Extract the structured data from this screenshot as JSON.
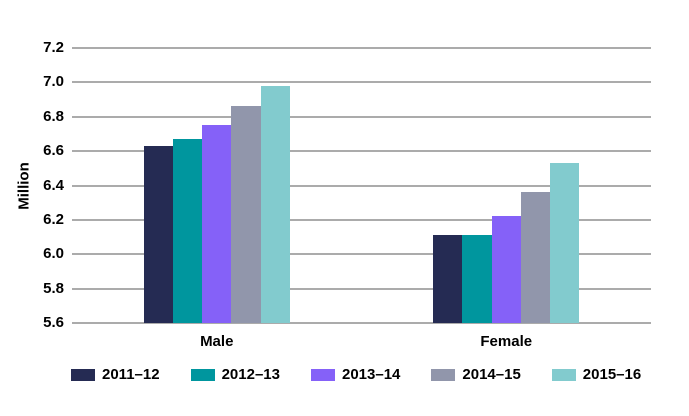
{
  "chart_data": {
    "type": "bar",
    "categories": [
      "Male",
      "Female"
    ],
    "series": [
      {
        "name": "2011–12",
        "color": "#252B53",
        "values": [
          6.63,
          6.11
        ]
      },
      {
        "name": "2012–13",
        "color": "#00969E",
        "values": [
          6.67,
          6.11
        ]
      },
      {
        "name": "2013–14",
        "color": "#8561F8",
        "values": [
          6.75,
          6.22
        ]
      },
      {
        "name": "2014–15",
        "color": "#9196AB",
        "values": [
          6.86,
          6.36
        ]
      },
      {
        "name": "2015–16",
        "color": "#82CBCE",
        "values": [
          6.98,
          6.53
        ]
      }
    ],
    "title": "",
    "xlabel": "",
    "ylabel": "Million",
    "ylim": [
      5.6,
      7.2
    ],
    "ytick_step": 0.2,
    "ytick_labels": [
      "7.2",
      "7.0",
      "6.8",
      "6.6",
      "6.4",
      "6.2",
      "6.0",
      "5.8",
      "5.6"
    ],
    "grid": "horizontal",
    "legend_position": "bottom"
  },
  "colors": {
    "background": "#FFFFFF",
    "gridline": "#ABABAB",
    "text": "#000000"
  }
}
